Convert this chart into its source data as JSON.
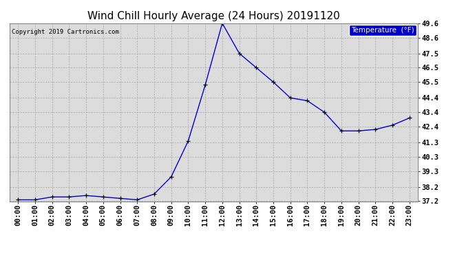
{
  "title": "Wind Chill Hourly Average (24 Hours) 20191120",
  "copyright": "Copyright 2019 Cartronics.com",
  "legend_label": "Temperature  (°F)",
  "hours": [
    "00:00",
    "01:00",
    "02:00",
    "03:00",
    "04:00",
    "05:00",
    "06:00",
    "07:00",
    "08:00",
    "09:00",
    "10:00",
    "11:00",
    "12:00",
    "13:00",
    "14:00",
    "15:00",
    "16:00",
    "17:00",
    "18:00",
    "19:00",
    "20:00",
    "21:00",
    "22:00",
    "23:00"
  ],
  "values": [
    37.3,
    37.3,
    37.5,
    37.5,
    37.6,
    37.5,
    37.4,
    37.3,
    37.7,
    38.9,
    41.4,
    45.3,
    49.6,
    47.5,
    46.5,
    45.5,
    44.4,
    44.2,
    43.4,
    42.1,
    42.1,
    42.2,
    42.5,
    43.0
  ],
  "ylim_min": 37.2,
  "ylim_max": 49.6,
  "yticks": [
    37.2,
    38.2,
    39.3,
    40.3,
    41.3,
    42.4,
    43.4,
    44.4,
    45.5,
    46.5,
    47.5,
    48.6,
    49.6
  ],
  "line_color": "#0000cc",
  "marker_color": "#000000",
  "background_color": "#ffffff",
  "plot_bg_color": "#dcdcdc",
  "grid_color": "#aaaaaa",
  "title_fontsize": 11,
  "tick_fontsize": 7.5,
  "copyright_fontsize": 6.5,
  "legend_bg_color": "#0000cc",
  "legend_text_color": "#ffffff",
  "legend_fontsize": 7.5
}
